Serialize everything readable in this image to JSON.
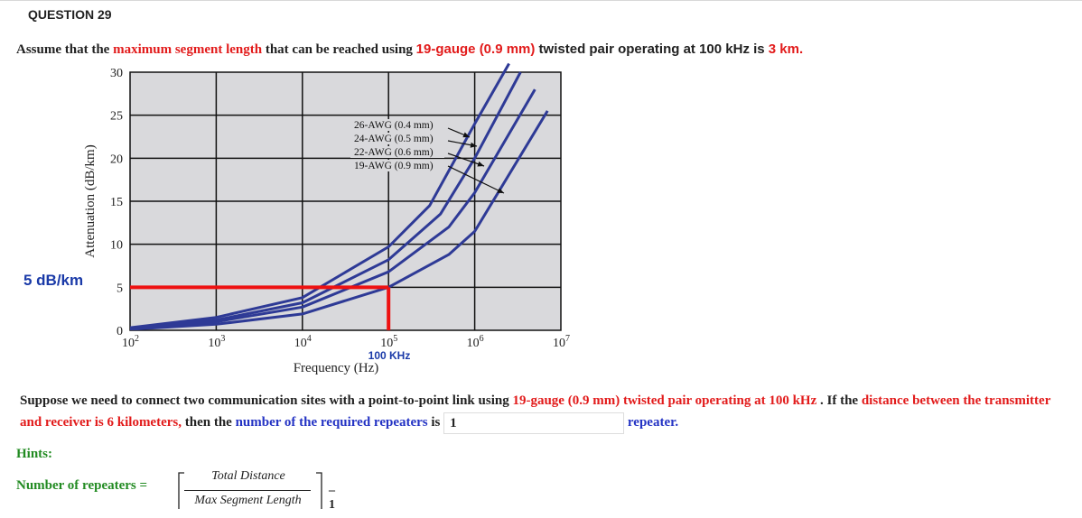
{
  "question": {
    "title": "QUESTION 29",
    "statement": {
      "p1": "Assume that the ",
      "p2": "maximum segment length",
      "p3": " that can be reached using ",
      "p4": "19-gauge (0.9 mm)",
      "p5": " twisted pair operating at 100 kHz is ",
      "p6": "3 km."
    }
  },
  "annotation": {
    "db_per_km": "5 dB/km",
    "freq_marker": "100 KHz"
  },
  "chart_data": {
    "type": "line",
    "xlabel": "Frequency (Hz)",
    "ylabel": "Attenuation (dB/km)",
    "xscale": "log",
    "xlim": [
      100,
      10000000
    ],
    "ylim": [
      0,
      30
    ],
    "x_ticks": [
      {
        "base": "10",
        "exp": "2"
      },
      {
        "base": "10",
        "exp": "3"
      },
      {
        "base": "10",
        "exp": "4"
      },
      {
        "base": "10",
        "exp": "5"
      },
      {
        "base": "10",
        "exp": "6"
      },
      {
        "base": "10",
        "exp": "7"
      }
    ],
    "y_ticks": [
      "0",
      "5",
      "10",
      "15",
      "20",
      "25",
      "30"
    ],
    "grid": true,
    "series": [
      {
        "name": "26-AWG (0.4 mm)",
        "x": [
          100,
          1000,
          10000,
          100000,
          300000,
          1000000,
          2500000
        ],
        "y": [
          0.3,
          1.5,
          3.8,
          9.7,
          14.5,
          24.0,
          31.0
        ]
      },
      {
        "name": "24-AWG (0.5 mm)",
        "x": [
          100,
          1000,
          10000,
          100000,
          400000,
          1000000,
          3400000
        ],
        "y": [
          0.2,
          1.2,
          3.2,
          8.2,
          13.5,
          20.0,
          30.0
        ]
      },
      {
        "name": "22-AWG (0.6 mm)",
        "x": [
          100,
          1000,
          10000,
          100000,
          500000,
          1000000,
          5000000
        ],
        "y": [
          0.15,
          1.0,
          2.7,
          6.8,
          12.0,
          16.0,
          28.0
        ]
      },
      {
        "name": "19-AWG (0.9 mm)",
        "x": [
          100,
          1000,
          10000,
          100000,
          500000,
          1000000,
          7000000
        ],
        "y": [
          0.1,
          0.7,
          1.9,
          5.0,
          8.8,
          11.5,
          25.5
        ]
      }
    ],
    "highlight": {
      "x": 100000,
      "y": 5
    }
  },
  "question2": {
    "s1": "Suppose we need to connect two communication sites with a point-to-point link using ",
    "s2": "19-gauge (0.9 mm) twisted pair operating at 100 kHz",
    "s3": " . If the ",
    "s4": "distance between the transmitter and receiver is 6 kilometers,",
    "s5": " then the ",
    "s6": "number of the required repeaters",
    "s7": " is ",
    "answer": "1",
    "s8": "repeater."
  },
  "hints": {
    "label": "Hints:",
    "formula_lhs": "Number of repeaters =",
    "numerator": "Total Distance",
    "denominator": "Max Segment Length",
    "suffix": "– 1"
  },
  "colors": {
    "red": "#e21b1b",
    "blue": "#2433c4",
    "green": "#228b22",
    "curve": "#2e3a96",
    "plot_bg": "#d9d9dc"
  }
}
